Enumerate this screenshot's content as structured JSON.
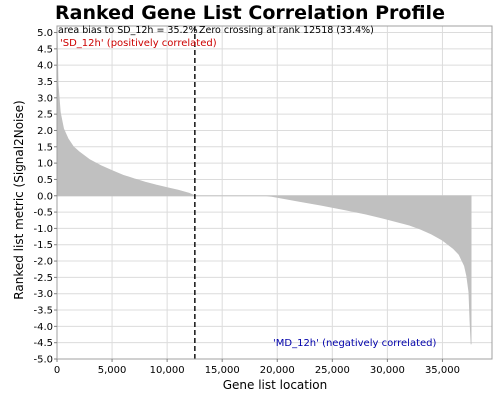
{
  "chart_data": {
    "type": "area",
    "title": "Ranked Gene List Correlation Profile",
    "xlabel": "Gene list location",
    "ylabel": "Ranked list metric (Signal2Noise)",
    "xlim": [
      0,
      39500
    ],
    "ylim": [
      -5.0,
      5.2
    ],
    "x_ticks": [
      0,
      5000,
      10000,
      15000,
      20000,
      25000,
      30000,
      35000
    ],
    "x_tick_labels": [
      "0",
      "5,000",
      "10,000",
      "15,000",
      "20,000",
      "25,000",
      "30,000",
      "35,000"
    ],
    "y_ticks": [
      5.0,
      4.5,
      4.0,
      3.5,
      3.0,
      2.5,
      2.0,
      1.5,
      1.0,
      0.5,
      0.0,
      -0.5,
      -1.0,
      -1.5,
      -2.0,
      -2.5,
      -3.0,
      -3.5,
      -4.0,
      -4.5,
      -5.0
    ],
    "y_tick_labels": [
      "5.0",
      "4.5",
      "4.0",
      "3.5",
      "3.0",
      "2.5",
      "2.0",
      "1.5",
      "1.0",
      "0.5",
      "0.0",
      "-0.5",
      "-1.0",
      "-1.5",
      "-2.0",
      "-2.5",
      "-3.0",
      "-3.5",
      "-4.0",
      "-4.5",
      "-5.0"
    ],
    "grid": true,
    "fill_color": "#c0c0c0",
    "series": [
      {
        "x": [
          0,
          100,
          300,
          600,
          1000,
          1500,
          2000,
          3000,
          4000,
          5000,
          6000,
          7000,
          8000,
          9000,
          10000,
          11000,
          12000,
          12518,
          19000,
          19500,
          20000,
          22000,
          24000,
          26000,
          28000,
          30000,
          32000,
          33000,
          34000,
          35000,
          36000,
          36500,
          37000,
          37200,
          37400,
          37500,
          37600
        ],
        "values": [
          5.1,
          3.4,
          2.55,
          2.05,
          1.75,
          1.5,
          1.35,
          1.1,
          0.92,
          0.77,
          0.63,
          0.52,
          0.42,
          0.33,
          0.25,
          0.17,
          0.08,
          0.0,
          0.0,
          -0.02,
          -0.05,
          -0.17,
          -0.29,
          -0.42,
          -0.56,
          -0.72,
          -0.9,
          -1.02,
          -1.17,
          -1.36,
          -1.62,
          -1.8,
          -2.15,
          -2.45,
          -2.95,
          -3.85,
          -4.55
        ]
      }
    ],
    "zero_crossing_rank": 12518,
    "annotations": {
      "area_bias": "area bias to SD_12h = 35.2%",
      "zero_crossing": "Zero crossing at rank 12518 (33.4%)",
      "positive_label": "'SD_12h' (positively correlated)",
      "negative_label": "'MD_12h' (negatively correlated)"
    },
    "colors": {
      "positive": "#cc0000",
      "negative": "#0000aa",
      "grid": "#dcdcdc"
    }
  }
}
